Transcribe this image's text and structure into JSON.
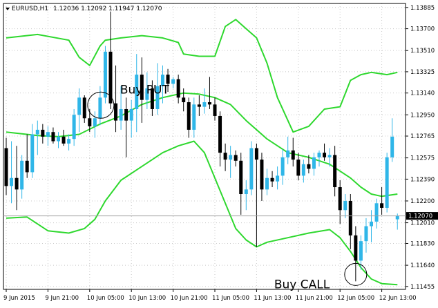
{
  "chart_data": {
    "type": "candlestick",
    "title": "EURUSD,H1  1.12036 1.12092 1.11947 1.12070",
    "symbol": "EURUSD,H1",
    "ohlc_header": "1.12036 1.12092 1.11947 1.12070",
    "current_price": 1.1207,
    "current_price_label": "1.12070",
    "ylim": [
      1.1143,
      1.1392
    ],
    "y_ticks": [
      1.13885,
      1.137,
      1.1351,
      1.13325,
      1.1314,
      1.1295,
      1.12765,
      1.12575,
      1.1239,
      1.122,
      1.1201,
      1.1183,
      1.1164,
      1.11455
    ],
    "y_tick_labels": [
      "1.13885",
      "1.13700",
      "1.13510",
      "1.13325",
      "1.13140",
      "1.12950",
      "1.12765",
      "1.12575",
      "1.12390",
      "1.12200",
      "1.12010",
      "1.11830",
      "1.11640",
      "1.11455"
    ],
    "x_tick_labels": [
      "9 Jun 2015",
      "9 Jun 21:00",
      "10 Jun 05:00",
      "10 Jun 13:00",
      "10 Jun 21:00",
      "11 Jun 05:00",
      "11 Jun 13:00",
      "11 Jun 21:00",
      "12 Jun 05:00",
      "12 Jun 13:00"
    ],
    "x_tick_index": [
      0,
      8,
      16,
      24,
      32,
      40,
      48,
      56,
      64,
      72
    ],
    "grid": true,
    "bar_count": 76,
    "colors": {
      "bull": "#2fb6e8",
      "bear": "#000000",
      "bands": "#2ed82e",
      "background": "#ffffff",
      "text": "#000000",
      "annotation": "#000000"
    },
    "candles": [
      {
        "o": 1.1266,
        "h": 1.1275,
        "l": 1.1225,
        "c": 1.1233
      },
      {
        "o": 1.1233,
        "h": 1.1272,
        "l": 1.1218,
        "c": 1.124
      },
      {
        "o": 1.124,
        "h": 1.1268,
        "l": 1.1212,
        "c": 1.123
      },
      {
        "o": 1.123,
        "h": 1.126,
        "l": 1.1222,
        "c": 1.1255
      },
      {
        "o": 1.1255,
        "h": 1.1278,
        "l": 1.124,
        "c": 1.1245
      },
      {
        "o": 1.1245,
        "h": 1.1287,
        "l": 1.124,
        "c": 1.1278
      },
      {
        "o": 1.1278,
        "h": 1.129,
        "l": 1.126,
        "c": 1.1282
      },
      {
        "o": 1.1282,
        "h": 1.1287,
        "l": 1.127,
        "c": 1.1276
      },
      {
        "o": 1.1276,
        "h": 1.1285,
        "l": 1.1268,
        "c": 1.128
      },
      {
        "o": 1.128,
        "h": 1.1284,
        "l": 1.127,
        "c": 1.1272
      },
      {
        "o": 1.1272,
        "h": 1.128,
        "l": 1.1266,
        "c": 1.1276
      },
      {
        "o": 1.1276,
        "h": 1.1282,
        "l": 1.1268,
        "c": 1.127
      },
      {
        "o": 1.127,
        "h": 1.1278,
        "l": 1.1264,
        "c": 1.1274
      },
      {
        "o": 1.1274,
        "h": 1.13,
        "l": 1.1268,
        "c": 1.1295
      },
      {
        "o": 1.1295,
        "h": 1.1318,
        "l": 1.128,
        "c": 1.131
      },
      {
        "o": 1.131,
        "h": 1.1312,
        "l": 1.1288,
        "c": 1.1292
      },
      {
        "o": 1.1292,
        "h": 1.13,
        "l": 1.128,
        "c": 1.1285
      },
      {
        "o": 1.1285,
        "h": 1.1298,
        "l": 1.1275,
        "c": 1.1292
      },
      {
        "o": 1.1292,
        "h": 1.132,
        "l": 1.1286,
        "c": 1.131
      },
      {
        "o": 1.131,
        "h": 1.1355,
        "l": 1.1305,
        "c": 1.135
      },
      {
        "o": 1.135,
        "h": 1.1385,
        "l": 1.13,
        "c": 1.1305
      },
      {
        "o": 1.1305,
        "h": 1.1338,
        "l": 1.128,
        "c": 1.129
      },
      {
        "o": 1.129,
        "h": 1.132,
        "l": 1.1282,
        "c": 1.13
      },
      {
        "o": 1.13,
        "h": 1.131,
        "l": 1.1258,
        "c": 1.129
      },
      {
        "o": 1.129,
        "h": 1.1308,
        "l": 1.1275,
        "c": 1.13
      },
      {
        "o": 1.13,
        "h": 1.1348,
        "l": 1.128,
        "c": 1.133
      },
      {
        "o": 1.133,
        "h": 1.1345,
        "l": 1.1288,
        "c": 1.1308
      },
      {
        "o": 1.1308,
        "h": 1.1332,
        "l": 1.13,
        "c": 1.1318
      },
      {
        "o": 1.1318,
        "h": 1.1325,
        "l": 1.1294,
        "c": 1.13
      },
      {
        "o": 1.13,
        "h": 1.134,
        "l": 1.1295,
        "c": 1.132
      },
      {
        "o": 1.132,
        "h": 1.1338,
        "l": 1.1305,
        "c": 1.133
      },
      {
        "o": 1.133,
        "h": 1.1335,
        "l": 1.1315,
        "c": 1.1322
      },
      {
        "o": 1.1322,
        "h": 1.1328,
        "l": 1.1318,
        "c": 1.1326
      },
      {
        "o": 1.1326,
        "h": 1.133,
        "l": 1.1305,
        "c": 1.131
      },
      {
        "o": 1.131,
        "h": 1.1318,
        "l": 1.1298,
        "c": 1.1306
      },
      {
        "o": 1.1306,
        "h": 1.131,
        "l": 1.1275,
        "c": 1.1282
      },
      {
        "o": 1.1282,
        "h": 1.131,
        "l": 1.1275,
        "c": 1.1304
      },
      {
        "o": 1.1304,
        "h": 1.1312,
        "l": 1.1294,
        "c": 1.1302
      },
      {
        "o": 1.1302,
        "h": 1.1318,
        "l": 1.1296,
        "c": 1.1306
      },
      {
        "o": 1.1306,
        "h": 1.1328,
        "l": 1.13,
        "c": 1.1304
      },
      {
        "o": 1.1304,
        "h": 1.131,
        "l": 1.129,
        "c": 1.1294
      },
      {
        "o": 1.1294,
        "h": 1.1298,
        "l": 1.125,
        "c": 1.1262
      },
      {
        "o": 1.1262,
        "h": 1.127,
        "l": 1.1246,
        "c": 1.1256
      },
      {
        "o": 1.1256,
        "h": 1.1268,
        "l": 1.124,
        "c": 1.126
      },
      {
        "o": 1.126,
        "h": 1.1264,
        "l": 1.125,
        "c": 1.1255
      },
      {
        "o": 1.1255,
        "h": 1.1262,
        "l": 1.1208,
        "c": 1.1226
      },
      {
        "o": 1.1226,
        "h": 1.1238,
        "l": 1.1212,
        "c": 1.123
      },
      {
        "o": 1.123,
        "h": 1.1272,
        "l": 1.1225,
        "c": 1.1266
      },
      {
        "o": 1.1266,
        "h": 1.127,
        "l": 1.118,
        "c": 1.1256
      },
      {
        "o": 1.1256,
        "h": 1.1262,
        "l": 1.122,
        "c": 1.123
      },
      {
        "o": 1.123,
        "h": 1.1248,
        "l": 1.1225,
        "c": 1.124
      },
      {
        "o": 1.124,
        "h": 1.1246,
        "l": 1.1232,
        "c": 1.1237
      },
      {
        "o": 1.1237,
        "h": 1.125,
        "l": 1.123,
        "c": 1.1242
      },
      {
        "o": 1.1242,
        "h": 1.1265,
        "l": 1.1234,
        "c": 1.1258
      },
      {
        "o": 1.1258,
        "h": 1.1276,
        "l": 1.1252,
        "c": 1.1264
      },
      {
        "o": 1.1264,
        "h": 1.1275,
        "l": 1.125,
        "c": 1.1256
      },
      {
        "o": 1.1256,
        "h": 1.1262,
        "l": 1.1238,
        "c": 1.1242
      },
      {
        "o": 1.1242,
        "h": 1.1256,
        "l": 1.1236,
        "c": 1.1252
      },
      {
        "o": 1.1252,
        "h": 1.126,
        "l": 1.1244,
        "c": 1.1248
      },
      {
        "o": 1.1248,
        "h": 1.1262,
        "l": 1.1242,
        "c": 1.1258
      },
      {
        "o": 1.1258,
        "h": 1.1264,
        "l": 1.125,
        "c": 1.1262
      },
      {
        "o": 1.1262,
        "h": 1.127,
        "l": 1.1255,
        "c": 1.1258
      },
      {
        "o": 1.1258,
        "h": 1.1266,
        "l": 1.125,
        "c": 1.126
      },
      {
        "o": 1.126,
        "h": 1.1268,
        "l": 1.1224,
        "c": 1.1232
      },
      {
        "o": 1.1232,
        "h": 1.1238,
        "l": 1.12,
        "c": 1.1212
      },
      {
        "o": 1.1212,
        "h": 1.1226,
        "l": 1.1205,
        "c": 1.122
      },
      {
        "o": 1.122,
        "h": 1.1226,
        "l": 1.1178,
        "c": 1.119
      },
      {
        "o": 1.119,
        "h": 1.1198,
        "l": 1.115,
        "c": 1.1168
      },
      {
        "o": 1.1168,
        "h": 1.119,
        "l": 1.116,
        "c": 1.1185
      },
      {
        "o": 1.1185,
        "h": 1.1205,
        "l": 1.1175,
        "c": 1.1198
      },
      {
        "o": 1.1198,
        "h": 1.1212,
        "l": 1.1184,
        "c": 1.1202
      },
      {
        "o": 1.1202,
        "h": 1.1222,
        "l": 1.1196,
        "c": 1.1218
      },
      {
        "o": 1.1218,
        "h": 1.1232,
        "l": 1.1208,
        "c": 1.1214
      },
      {
        "o": 1.1214,
        "h": 1.1262,
        "l": 1.121,
        "c": 1.1258
      },
      {
        "o": 1.1258,
        "h": 1.1292,
        "l": 1.1254,
        "c": 1.1276
      },
      {
        "o": 1.1204,
        "h": 1.1209,
        "l": 1.1195,
        "c": 1.1207
      }
    ],
    "bands": {
      "upper_points": [
        [
          0,
          1.1362
        ],
        [
          6,
          1.1365
        ],
        [
          12,
          1.136
        ],
        [
          14,
          1.1345
        ],
        [
          16,
          1.1338
        ],
        [
          18,
          1.1355
        ],
        [
          19,
          1.136
        ],
        [
          22,
          1.1362
        ],
        [
          26,
          1.1364
        ],
        [
          30,
          1.1362
        ],
        [
          33,
          1.1358
        ],
        [
          34,
          1.1348
        ],
        [
          37,
          1.1346
        ],
        [
          40,
          1.1346
        ],
        [
          42,
          1.1372
        ],
        [
          44,
          1.1378
        ],
        [
          46,
          1.137
        ],
        [
          48,
          1.1362
        ],
        [
          50,
          1.134
        ],
        [
          52,
          1.131
        ],
        [
          55,
          1.128
        ],
        [
          58,
          1.1285
        ],
        [
          61,
          1.13
        ],
        [
          64,
          1.1302
        ],
        [
          66,
          1.1325
        ],
        [
          68,
          1.133
        ],
        [
          70,
          1.1332
        ],
        [
          73,
          1.133
        ],
        [
          75,
          1.1332
        ]
      ],
      "middle_points": [
        [
          0,
          1.128
        ],
        [
          6,
          1.1277
        ],
        [
          10,
          1.1276
        ],
        [
          14,
          1.1278
        ],
        [
          18,
          1.1287
        ],
        [
          22,
          1.1294
        ],
        [
          26,
          1.1304
        ],
        [
          30,
          1.131
        ],
        [
          34,
          1.1314
        ],
        [
          37,
          1.1313
        ],
        [
          40,
          1.131
        ],
        [
          43,
          1.1304
        ],
        [
          46,
          1.129
        ],
        [
          50,
          1.1274
        ],
        [
          54,
          1.1262
        ],
        [
          58,
          1.1258
        ],
        [
          62,
          1.1252
        ],
        [
          66,
          1.124
        ],
        [
          68,
          1.1232
        ],
        [
          70,
          1.1226
        ],
        [
          72,
          1.1224
        ],
        [
          75,
          1.1226
        ]
      ],
      "lower_points": [
        [
          0,
          1.1205
        ],
        [
          4,
          1.1206
        ],
        [
          8,
          1.1194
        ],
        [
          12,
          1.1192
        ],
        [
          15,
          1.1196
        ],
        [
          17,
          1.1204
        ],
        [
          19,
          1.122
        ],
        [
          22,
          1.1238
        ],
        [
          26,
          1.125
        ],
        [
          30,
          1.1262
        ],
        [
          33,
          1.1268
        ],
        [
          36,
          1.1272
        ],
        [
          38,
          1.1262
        ],
        [
          40,
          1.124
        ],
        [
          42,
          1.1218
        ],
        [
          44,
          1.1196
        ],
        [
          46,
          1.1186
        ],
        [
          48,
          1.118
        ],
        [
          50,
          1.1184
        ],
        [
          54,
          1.1188
        ],
        [
          58,
          1.1192
        ],
        [
          62,
          1.1195
        ],
        [
          64,
          1.1188
        ],
        [
          66,
          1.1176
        ],
        [
          68,
          1.1162
        ],
        [
          70,
          1.1152
        ],
        [
          72,
          1.1148
        ],
        [
          75,
          1.1147
        ]
      ]
    },
    "annotations": [
      {
        "text": "Buy PUT",
        "bar": 18
      },
      {
        "text": "Buy CALL",
        "bar": 67
      }
    ]
  }
}
